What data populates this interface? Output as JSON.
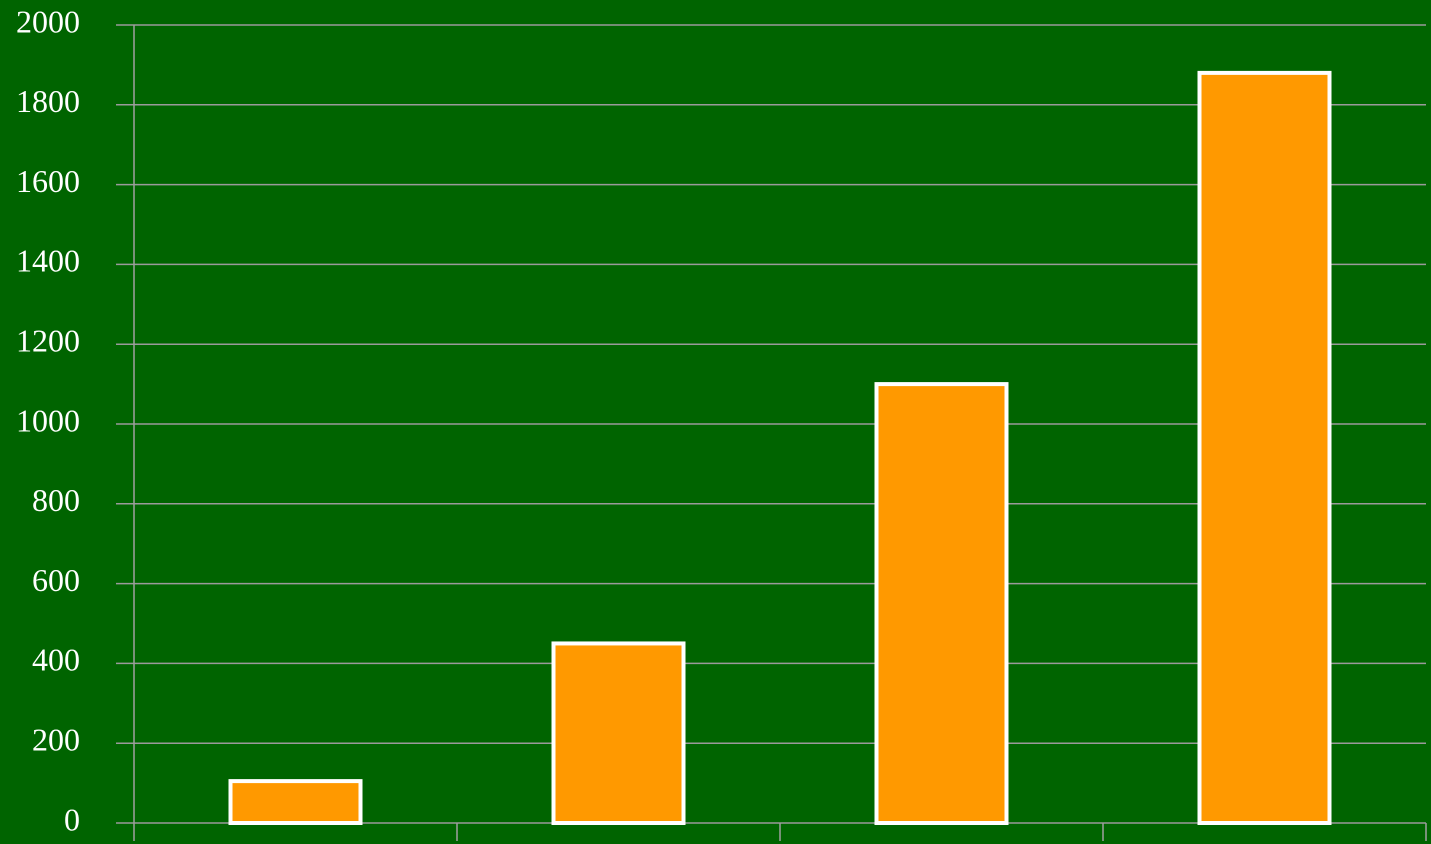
{
  "chart_data": {
    "type": "bar",
    "categories": [
      null,
      null,
      null,
      null
    ],
    "values": [
      105,
      450,
      1100,
      1880
    ],
    "color": "#ff9900",
    "ylim": [
      0,
      2000
    ],
    "yticks": [
      0,
      200,
      400,
      600,
      800,
      1000,
      1200,
      1400,
      1600,
      1800,
      2000
    ],
    "grid": true
  }
}
